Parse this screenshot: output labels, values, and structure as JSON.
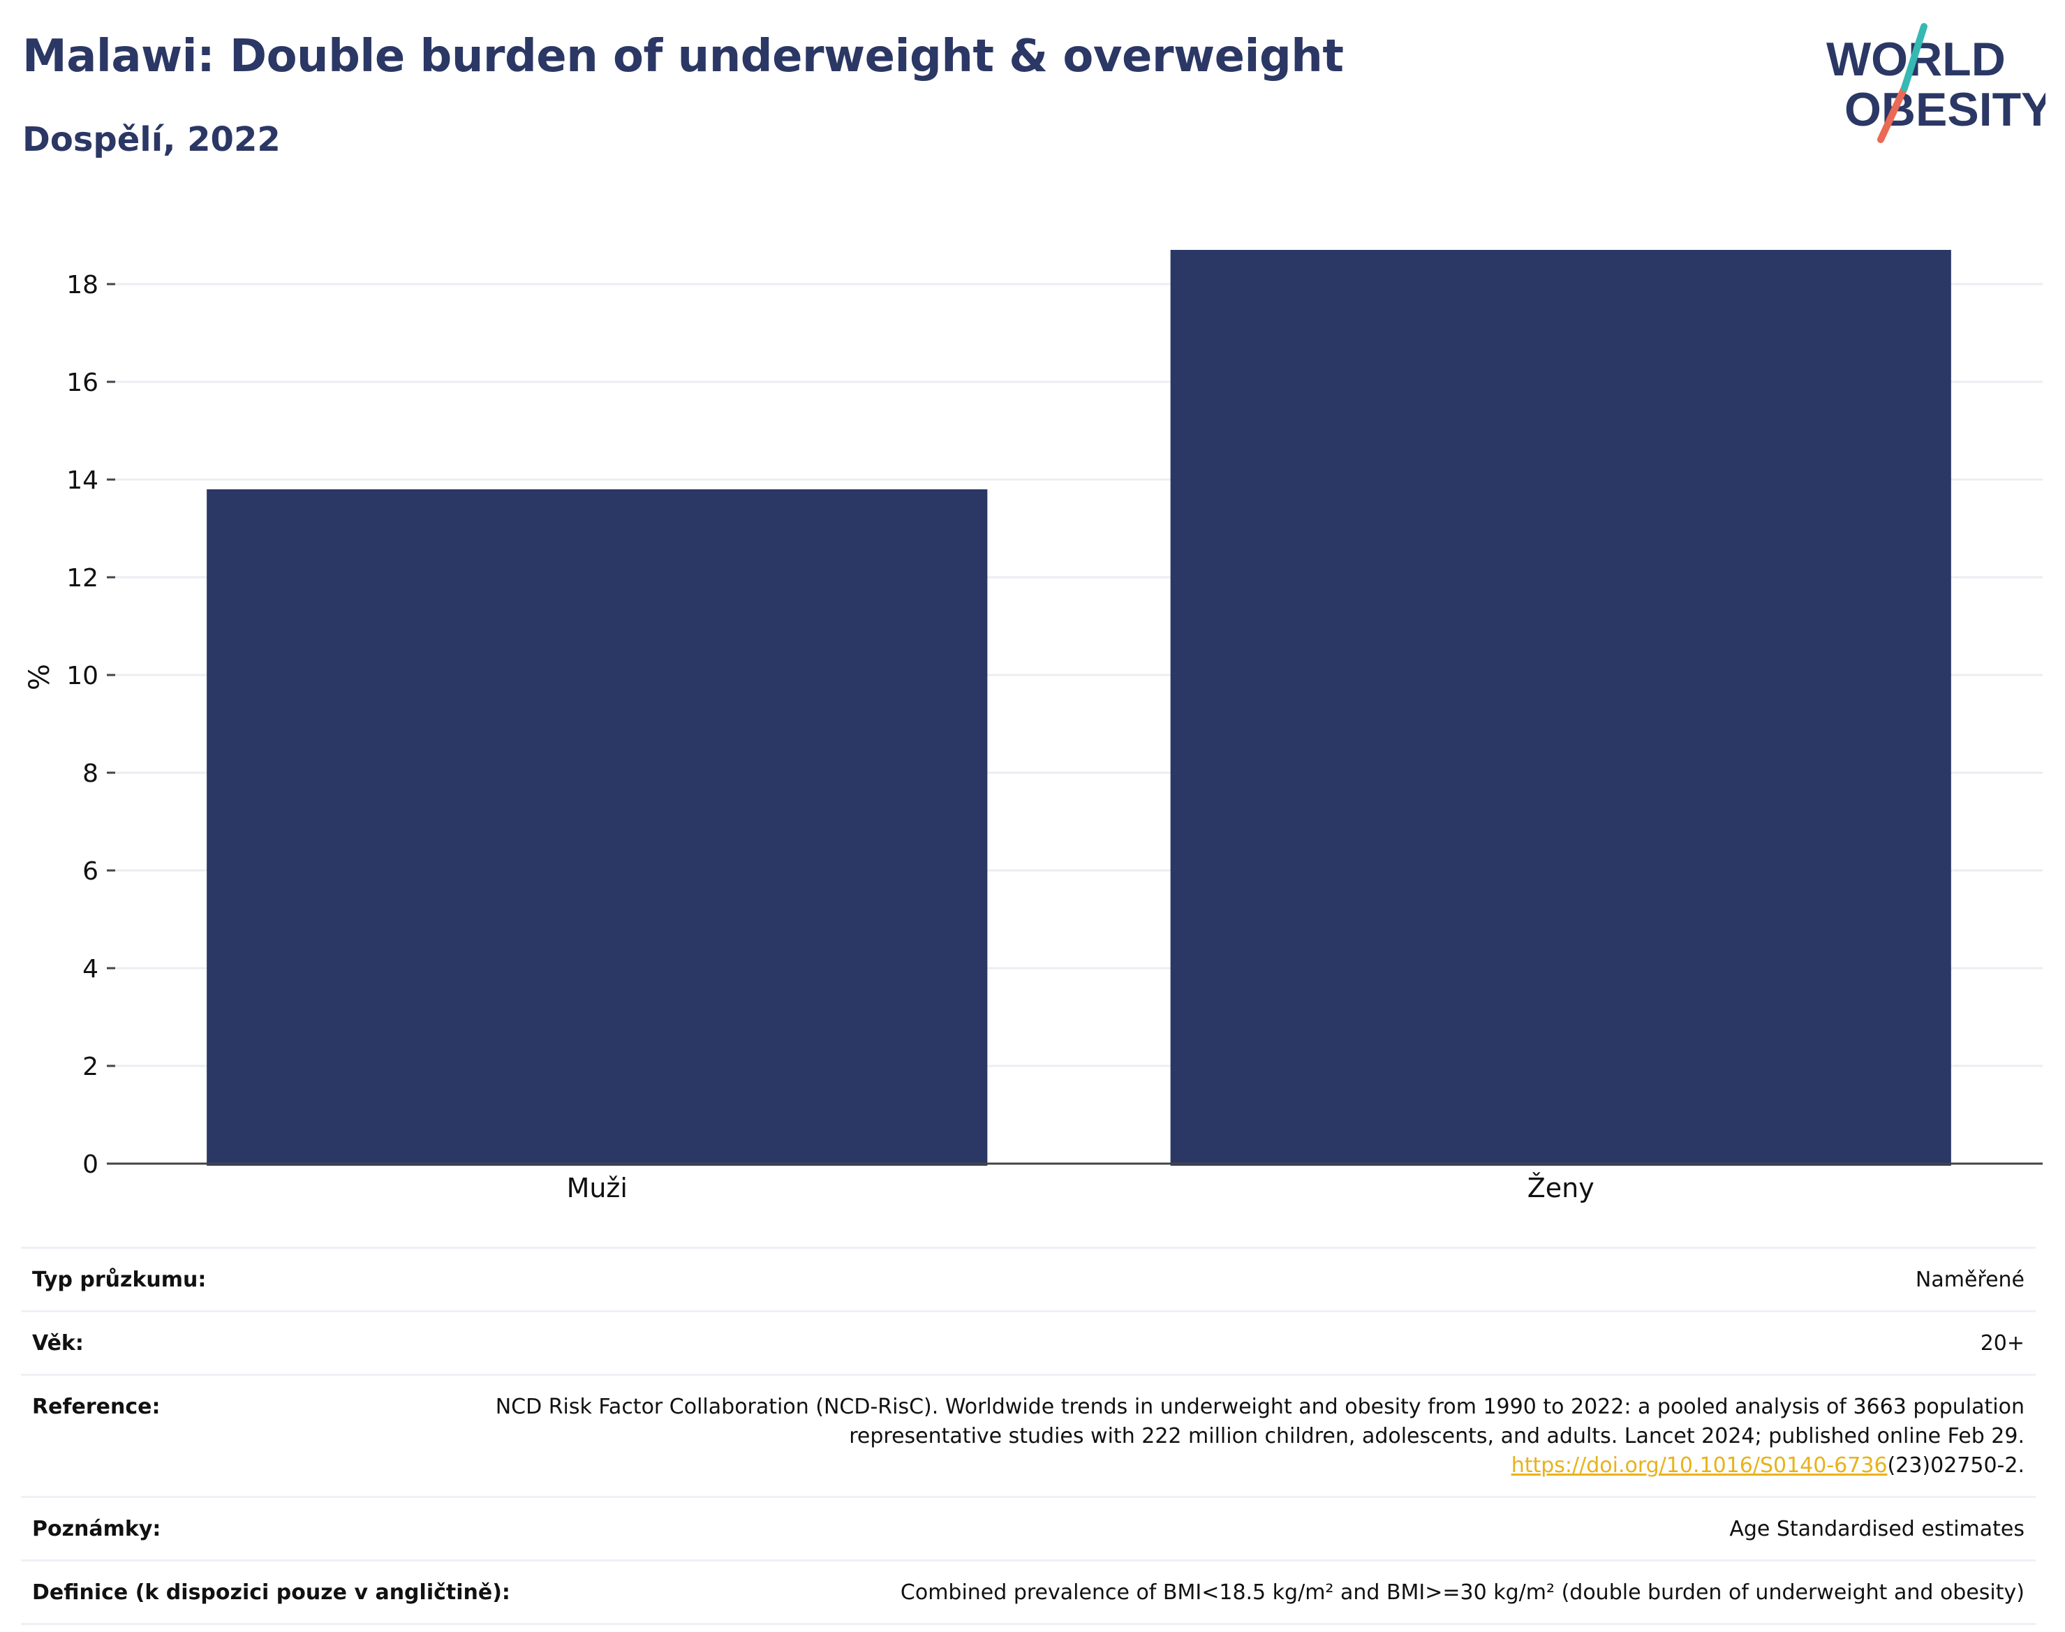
{
  "header": {
    "title": "Malawi: Double burden of underweight & overweight",
    "subtitle": "Dospělí, 2022"
  },
  "logo": {
    "line1": "WORLD",
    "line2": "OBESITY",
    "text_color": "#2b3764",
    "accent_teal": "#36b9b2",
    "accent_coral": "#ea6a55"
  },
  "chart_data": {
    "type": "bar",
    "categories": [
      "Muži",
      "Ženy"
    ],
    "values": [
      13.8,
      18.7
    ],
    "ylabel": "%",
    "xlabel": "",
    "ylim": [
      0,
      19.1
    ],
    "yticks": [
      0,
      2,
      4,
      6,
      8,
      10,
      12,
      14,
      16,
      18
    ],
    "grid": true,
    "bar_color": "#2b3764"
  },
  "meta": {
    "survey_type_label": "Typ průzkumu:",
    "survey_type_value": "Naměřené",
    "age_label": "Věk:",
    "age_value": "20+",
    "reference_label": "Reference:",
    "reference_text": "NCD Risk Factor Collaboration (NCD-RisC). Worldwide trends in underweight and obesity from 1990 to 2022: a pooled analysis of 3663 population representative studies with 222 million children, adolescents, and adults. Lancet 2024; published online Feb 29.",
    "reference_link": "https://doi.org/10.1016/S0140-6736",
    "reference_suffix": "(23)02750-2.",
    "notes_label": "Poznámky:",
    "notes_value": "Age Standardised estimates",
    "definition_label": "Definice (k dispozici pouze v angličtině):",
    "definition_value": "Combined prevalence of BMI<18.5 kg/m² and BMI>=30 kg/m² (double burden of underweight and obesity)"
  }
}
